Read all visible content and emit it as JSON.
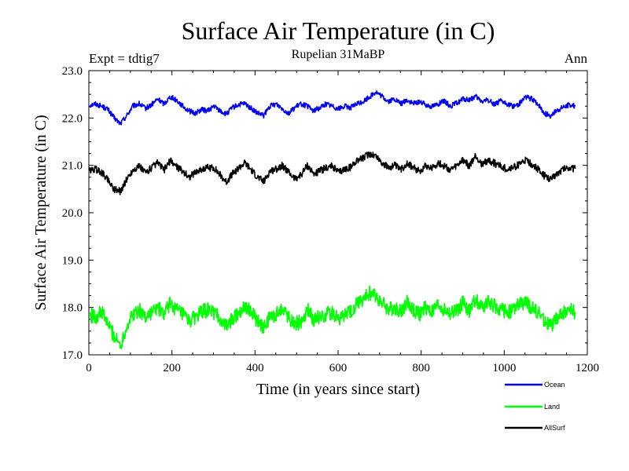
{
  "chart_data": {
    "type": "line",
    "title": "Surface Air Temperature (in C)",
    "subtitle": "Rupelian  31MaBP",
    "experiment": "Expt = tdtig7",
    "season": "Ann",
    "xlabel": "Time (in years since start)",
    "ylabel": "Surface Air Temperature (in C)",
    "xlim": [
      0,
      1200
    ],
    "ylim": [
      17.0,
      23.0
    ],
    "xticks": [
      0,
      200,
      400,
      600,
      800,
      1000,
      1200
    ],
    "yticks": [
      17.0,
      18.0,
      19.0,
      20.0,
      21.0,
      22.0,
      23.0
    ],
    "ytick_labels": [
      "17.0",
      "18.0",
      "19.0",
      "20.0",
      "21.0",
      "22.0",
      "23.0"
    ],
    "x_start": 1,
    "x_step": 15,
    "legend_position": "bottom-right",
    "series": [
      {
        "name": "Ocean",
        "color": "#0000ee",
        "values": [
          22.27,
          22.3,
          22.25,
          22.18,
          22.0,
          21.88,
          22.05,
          22.25,
          22.3,
          22.2,
          22.28,
          22.4,
          22.3,
          22.45,
          22.38,
          22.25,
          22.15,
          22.1,
          22.18,
          22.15,
          22.25,
          22.15,
          22.08,
          22.22,
          22.28,
          22.3,
          22.2,
          22.1,
          22.05,
          22.25,
          22.3,
          22.2,
          22.1,
          22.22,
          22.3,
          22.25,
          22.15,
          22.22,
          22.3,
          22.25,
          22.2,
          22.25,
          22.22,
          22.3,
          22.35,
          22.45,
          22.55,
          22.45,
          22.35,
          22.4,
          22.3,
          22.38,
          22.3,
          22.35,
          22.28,
          22.25,
          22.3,
          22.35,
          22.25,
          22.32,
          22.4,
          22.38,
          22.45,
          22.35,
          22.38,
          22.3,
          22.35,
          22.3,
          22.25,
          22.3,
          22.45,
          22.4,
          22.3,
          22.1,
          22.05,
          22.15,
          22.22,
          22.28,
          22.25
        ]
      },
      {
        "name": "Land",
        "color": "#00ff00",
        "values": [
          17.85,
          17.8,
          17.9,
          17.65,
          17.4,
          17.2,
          17.6,
          17.85,
          17.95,
          17.8,
          17.9,
          18.0,
          17.85,
          18.1,
          17.95,
          17.85,
          17.7,
          17.8,
          17.9,
          17.95,
          17.9,
          17.75,
          17.6,
          17.75,
          17.9,
          18.05,
          17.9,
          17.7,
          17.55,
          17.8,
          17.85,
          18.0,
          17.8,
          17.65,
          17.7,
          17.95,
          17.75,
          17.8,
          17.85,
          17.9,
          17.75,
          17.85,
          17.9,
          18.1,
          18.15,
          18.3,
          18.25,
          18.1,
          17.95,
          18.0,
          17.9,
          18.1,
          17.95,
          17.85,
          18.0,
          17.9,
          18.05,
          17.95,
          17.85,
          17.95,
          18.1,
          17.9,
          18.2,
          18.0,
          18.1,
          18.05,
          17.95,
          17.9,
          17.95,
          18.05,
          18.1,
          18.0,
          17.9,
          17.75,
          17.6,
          17.75,
          17.9,
          17.95,
          17.9
        ]
      },
      {
        "name": "AllSurf",
        "color": "#000000",
        "values": [
          20.88,
          20.92,
          20.85,
          20.7,
          20.5,
          20.45,
          20.7,
          20.9,
          20.98,
          20.85,
          20.95,
          21.05,
          20.9,
          21.1,
          20.98,
          20.88,
          20.75,
          20.85,
          20.92,
          20.95,
          20.95,
          20.8,
          20.65,
          20.82,
          20.95,
          21.05,
          20.9,
          20.75,
          20.65,
          20.88,
          20.92,
          21.0,
          20.85,
          20.72,
          20.8,
          21.0,
          20.82,
          20.88,
          20.95,
          20.98,
          20.85,
          20.92,
          20.96,
          21.12,
          21.15,
          21.25,
          21.2,
          21.05,
          20.95,
          21.0,
          20.9,
          21.05,
          20.95,
          20.88,
          21.0,
          20.95,
          21.05,
          20.98,
          20.9,
          20.98,
          21.12,
          20.98,
          21.2,
          21.02,
          21.1,
          21.05,
          20.98,
          20.92,
          20.95,
          21.02,
          21.1,
          21.02,
          20.92,
          20.78,
          20.7,
          20.82,
          20.92,
          20.96,
          20.92
        ]
      }
    ]
  }
}
